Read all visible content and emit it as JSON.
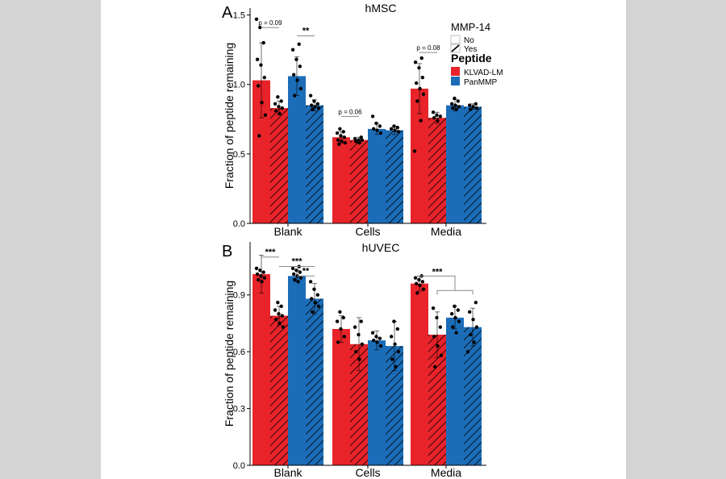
{
  "legend": {
    "fill_title": "MMP-14",
    "fill_items": [
      {
        "label": "No",
        "hatched": false
      },
      {
        "label": "Yes",
        "hatched": true
      }
    ],
    "color_title": "Peptide",
    "color_items": [
      {
        "label": "KLVAD-LM",
        "color": "#e8232a"
      },
      {
        "label": "PanMMP",
        "color": "#1c6db8"
      }
    ]
  },
  "chart_data": [
    {
      "type": "bar",
      "panel_label": "A",
      "title": "hMSC",
      "ylabel": "Fraction of peptide remaining",
      "xlabel": "",
      "ylim": [
        0,
        1.55
      ],
      "yticks": [
        0.0,
        0.5,
        1.0,
        1.5
      ],
      "ytick_labels": [
        "0.0",
        "0.5",
        "1.0",
        "1.5"
      ],
      "categories": [
        "Blank",
        "Cells",
        "Media"
      ],
      "grid": false,
      "series": [
        {
          "name": "KLVAD-LM / No",
          "peptide": "KLVAD-LM",
          "mmp14": "No",
          "color": "#e8232a",
          "hatched": false,
          "values": [
            1.03,
            0.62,
            0.97
          ],
          "errors": [
            0.27,
            0.04,
            0.18
          ],
          "points": [
            [
              1.47,
              1.41,
              1.3,
              1.18,
              1.14,
              1.05,
              0.99,
              0.87,
              0.78,
              0.63
            ],
            [
              0.68,
              0.66,
              0.65,
              0.63,
              0.62,
              0.6,
              0.59,
              0.58,
              0.57
            ],
            [
              1.19,
              1.16,
              1.12,
              1.05,
              1.01,
              0.97,
              0.93,
              0.88,
              0.74,
              0.52
            ]
          ]
        },
        {
          "name": "KLVAD-LM / Yes",
          "peptide": "KLVAD-LM",
          "mmp14": "Yes",
          "color": "#e8232a",
          "hatched": true,
          "values": [
            0.83,
            0.6,
            0.76
          ],
          "errors": [
            0.05,
            0.02,
            0.04
          ],
          "points": [
            [
              0.91,
              0.88,
              0.86,
              0.84,
              0.83,
              0.81,
              0.79
            ],
            [
              0.62,
              0.61,
              0.6,
              0.6,
              0.59,
              0.58
            ],
            [
              0.8,
              0.78,
              0.77,
              0.76,
              0.74
            ]
          ]
        },
        {
          "name": "PanMMP / No",
          "peptide": "PanMMP",
          "mmp14": "No",
          "color": "#1c6db8",
          "hatched": false,
          "values": [
            1.06,
            0.68,
            0.85
          ],
          "errors": [
            0.14,
            0.04,
            0.04
          ],
          "points": [
            [
              1.29,
              1.25,
              1.18,
              1.13,
              1.07,
              1.03,
              0.97,
              0.92
            ],
            [
              0.77,
              0.72,
              0.7,
              0.68,
              0.67,
              0.65
            ],
            [
              0.9,
              0.88,
              0.86,
              0.85,
              0.84,
              0.83,
              0.82
            ]
          ]
        },
        {
          "name": "PanMMP / Yes",
          "peptide": "PanMMP",
          "mmp14": "Yes",
          "color": "#1c6db8",
          "hatched": true,
          "values": [
            0.85,
            0.67,
            0.84
          ],
          "errors": [
            0.04,
            0.03,
            0.02
          ],
          "points": [
            [
              0.92,
              0.88,
              0.86,
              0.85,
              0.84,
              0.83,
              0.82
            ],
            [
              0.7,
              0.69,
              0.68,
              0.67,
              0.66
            ],
            [
              0.86,
              0.85,
              0.84,
              0.83,
              0.82
            ]
          ]
        }
      ],
      "annotations": [
        {
          "text": "p = 0.09",
          "category": "Blank",
          "from_series": 0,
          "to_series": 1,
          "y": 1.41
        },
        {
          "text": "**",
          "category": "Blank",
          "from_series": 2,
          "to_series": 3,
          "y": 1.35
        },
        {
          "text": "p = 0.06",
          "category": "Cells",
          "from_series": 0,
          "to_series": 1,
          "y": 0.77
        },
        {
          "text": "p = 0.08",
          "category": "Media",
          "from_series": 0,
          "to_series": 1,
          "y": 1.23
        }
      ]
    },
    {
      "type": "bar",
      "panel_label": "B",
      "title": "hUVEC",
      "ylabel": "Fraction of peptide remaining",
      "xlabel": "",
      "ylim": [
        0,
        1.18
      ],
      "yticks": [
        0.0,
        0.3,
        0.6,
        0.9
      ],
      "ytick_labels": [
        "0.0",
        "0.3",
        "0.6",
        "0.9"
      ],
      "categories": [
        "Blank",
        "Cells",
        "Media"
      ],
      "grid": false,
      "series": [
        {
          "name": "KLVAD-LM / No",
          "peptide": "KLVAD-LM",
          "mmp14": "No",
          "color": "#e8232a",
          "hatched": false,
          "values": [
            1.01,
            0.72,
            0.96
          ],
          "errors": [
            0.1,
            0.07,
            0.04
          ],
          "points": [
            [
              1.04,
              1.03,
              1.02,
              1.01,
              1.0,
              0.99,
              0.98,
              0.97
            ],
            [
              0.81,
              0.78,
              0.76,
              0.72,
              0.68,
              0.65
            ],
            [
              1.0,
              0.99,
              0.98,
              0.97,
              0.96,
              0.95,
              0.93,
              0.91
            ]
          ]
        },
        {
          "name": "KLVAD-LM / Yes",
          "peptide": "KLVAD-LM",
          "mmp14": "Yes",
          "color": "#e8232a",
          "hatched": true,
          "values": [
            0.79,
            0.64,
            0.69
          ],
          "errors": [
            0.05,
            0.14,
            0.12
          ],
          "points": [
            [
              0.86,
              0.84,
              0.82,
              0.8,
              0.79,
              0.77,
              0.75,
              0.73
            ],
            [
              0.76,
              0.73,
              0.69,
              0.64,
              0.6,
              0.56
            ],
            [
              0.83,
              0.78,
              0.73,
              0.68,
              0.63,
              0.58,
              0.52
            ]
          ]
        },
        {
          "name": "PanMMP / No",
          "peptide": "PanMMP",
          "mmp14": "No",
          "color": "#1c6db8",
          "hatched": false,
          "values": [
            1.0,
            0.66,
            0.78
          ],
          "errors": [
            0.03,
            0.05,
            0.06
          ],
          "points": [
            [
              1.05,
              1.04,
              1.03,
              1.02,
              1.01,
              1.0,
              0.99,
              0.98,
              0.97
            ],
            [
              0.7,
              0.68,
              0.67,
              0.66,
              0.65,
              0.63
            ],
            [
              0.84,
              0.82,
              0.8,
              0.78,
              0.76,
              0.73,
              0.7
            ]
          ]
        },
        {
          "name": "PanMMP / Yes",
          "peptide": "PanMMP",
          "mmp14": "Yes",
          "color": "#1c6db8",
          "hatched": true,
          "values": [
            0.88,
            0.63,
            0.73
          ],
          "errors": [
            0.08,
            0.13,
            0.1
          ],
          "points": [
            [
              0.97,
              0.93,
              0.9,
              0.88,
              0.86,
              0.84,
              0.81
            ],
            [
              0.76,
              0.72,
              0.68,
              0.64,
              0.6,
              0.56,
              0.52
            ],
            [
              0.86,
              0.81,
              0.77,
              0.73,
              0.69,
              0.65,
              0.6
            ]
          ]
        }
      ],
      "annotations": [
        {
          "text": "***",
          "category": "Blank",
          "from_series": 0,
          "to_series": 1,
          "y": 1.1
        },
        {
          "text": "***",
          "category": "Blank",
          "from_series": 1,
          "to_series": 3,
          "y": 1.05
        },
        {
          "text": "**",
          "category": "Blank",
          "from_series": 2,
          "to_series": 3,
          "y": 1.0
        },
        {
          "text": "***",
          "category": "Media",
          "from_series": 0,
          "to_series": [
            1,
            3
          ],
          "y": 1.0
        }
      ]
    }
  ]
}
